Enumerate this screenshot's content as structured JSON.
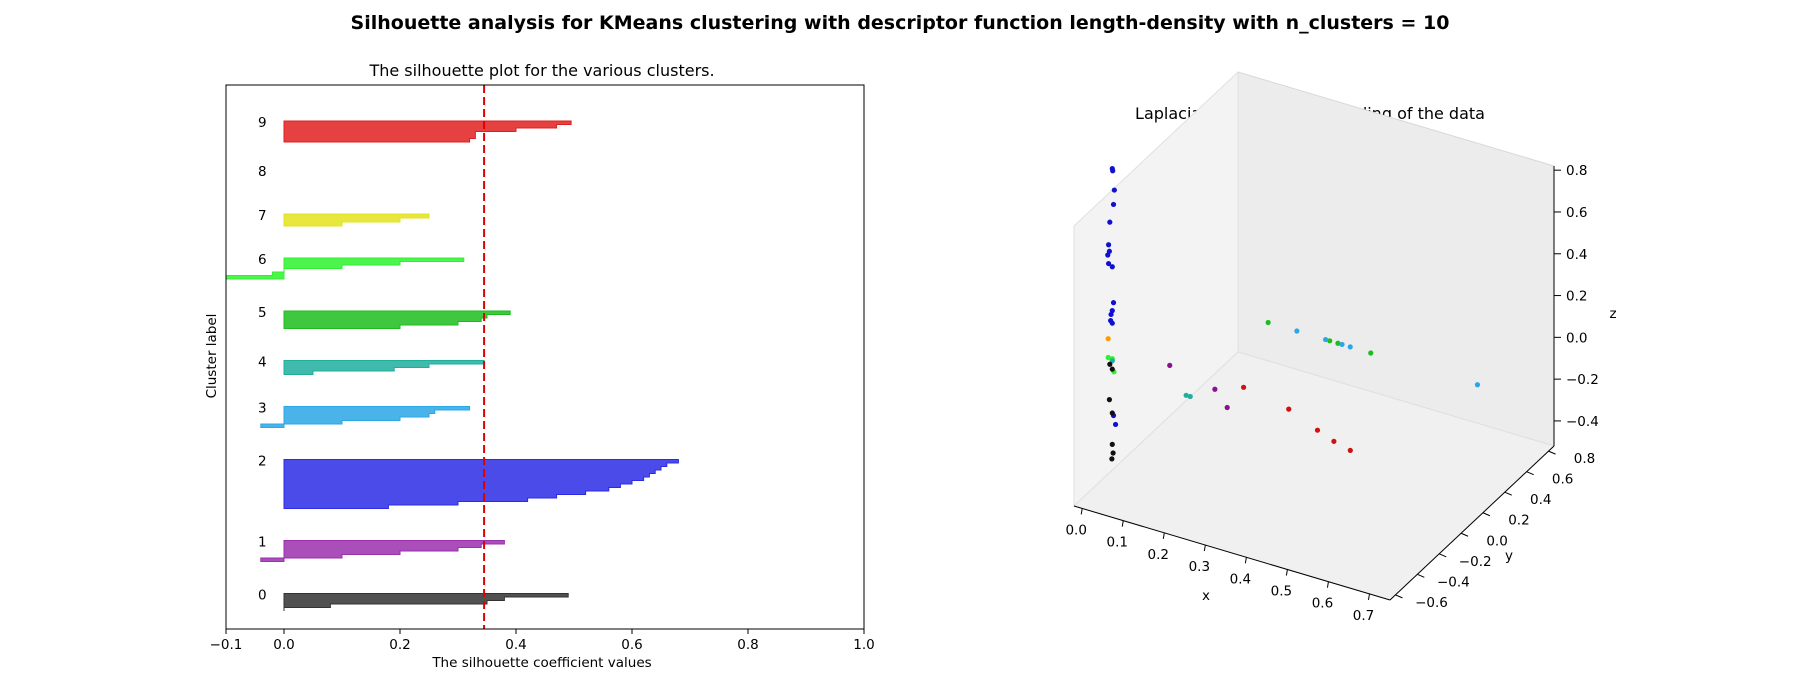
{
  "figure": {
    "suptitle": "Silhouette analysis for KMeans clustering with descriptor function length-density with n_clusters = 10"
  },
  "chart_data": [
    {
      "type": "area",
      "title": "The silhouette plot for the various clusters.",
      "xlabel": "The silhouette coefficient values",
      "ylabel": "Cluster label",
      "xlim": [
        -0.1,
        1.0
      ],
      "x_ticks": [
        "−0.1",
        "0.0",
        "0.2",
        "0.4",
        "0.6",
        "0.8",
        "1.0"
      ],
      "x_tick_values": [
        -0.1,
        0.0,
        0.2,
        0.4,
        0.6,
        0.8,
        1.0
      ],
      "y_ticks": "none",
      "grid": false,
      "average_silhouette": 0.345,
      "average_line_color": "#e00000",
      "clusters": [
        {
          "label": "0",
          "color": "#333333",
          "values": [
            0.49,
            0.38,
            0.35,
            0.08,
            0.0
          ]
        },
        {
          "label": "1",
          "color": "#9b2fae",
          "values": [
            0.38,
            0.34,
            0.3,
            0.2,
            0.1,
            -0.04
          ]
        },
        {
          "label": "2",
          "color": "#2b2be6",
          "values": [
            0.68,
            0.66,
            0.65,
            0.64,
            0.63,
            0.62,
            0.6,
            0.58,
            0.56,
            0.52,
            0.47,
            0.42,
            0.3,
            0.18
          ]
        },
        {
          "label": "3",
          "color": "#2aa7e6",
          "values": [
            0.32,
            0.26,
            0.25,
            0.2,
            0.1,
            -0.04
          ]
        },
        {
          "label": "4",
          "color": "#1fae9c",
          "values": [
            0.345,
            0.25,
            0.19,
            0.05
          ]
        },
        {
          "label": "5",
          "color": "#1ebd1e",
          "values": [
            0.39,
            0.35,
            0.34,
            0.3,
            0.2
          ]
        },
        {
          "label": "6",
          "color": "#2ef22e",
          "values": [
            0.31,
            0.2,
            0.1,
            0.0,
            -0.02,
            -0.1
          ]
        },
        {
          "label": "7",
          "color": "#e3e31c",
          "values": [
            0.25,
            0.2,
            0.1
          ]
        },
        {
          "label": "8",
          "color": "#ff9a00",
          "values": []
        },
        {
          "label": "9",
          "color": "#e02020",
          "values": [
            0.495,
            0.47,
            0.4,
            0.33,
            0.33,
            0.32
          ]
        }
      ]
    },
    {
      "type": "scatter",
      "title": "Laplacian eigenmap embedding of the data",
      "xlabel": "x",
      "ylabel": "y",
      "zlabel": "z",
      "xlim": [
        -0.02,
        0.75
      ],
      "ylim": [
        -0.65,
        0.85
      ],
      "zlim": [
        -0.52,
        0.82
      ],
      "x_ticks": [
        "0.0",
        "0.1",
        "0.2",
        "0.3",
        "0.4",
        "0.5",
        "0.6",
        "0.7"
      ],
      "x_tick_values": [
        0.0,
        0.1,
        0.2,
        0.3,
        0.4,
        0.5,
        0.6,
        0.7
      ],
      "y_ticks": [
        "−0.6",
        "−0.4",
        "−0.2",
        "0.0",
        "0.2",
        "0.4",
        "0.6",
        "0.8"
      ],
      "y_tick_values": [
        -0.6,
        -0.4,
        -0.2,
        0.0,
        0.2,
        0.4,
        0.6,
        0.8
      ],
      "z_ticks": [
        "−0.4",
        "−0.2",
        "0.0",
        "0.2",
        "0.4",
        "0.6",
        "0.8"
      ],
      "z_tick_values": [
        -0.4,
        -0.2,
        0.0,
        0.2,
        0.4,
        0.6,
        0.8
      ],
      "grid": false,
      "points": [
        {
          "x": 0.02,
          "y": -0.45,
          "z": 1.02,
          "color": "#1010d0"
        },
        {
          "x": 0.021,
          "y": -0.45,
          "z": 1.01,
          "color": "#1010d0"
        },
        {
          "x": 0.025,
          "y": -0.45,
          "z": 0.92,
          "color": "#1010d0"
        },
        {
          "x": 0.023,
          "y": -0.45,
          "z": 0.85,
          "color": "#1010d0"
        },
        {
          "x": 0.014,
          "y": -0.45,
          "z": 0.76,
          "color": "#1010d0"
        },
        {
          "x": 0.011,
          "y": -0.45,
          "z": 0.65,
          "color": "#1010d0"
        },
        {
          "x": 0.013,
          "y": -0.45,
          "z": 0.62,
          "color": "#1010d0"
        },
        {
          "x": 0.009,
          "y": -0.45,
          "z": 0.6,
          "color": "#1010d0"
        },
        {
          "x": 0.011,
          "y": -0.45,
          "z": 0.56,
          "color": "#1010d0"
        },
        {
          "x": 0.02,
          "y": -0.45,
          "z": 0.55,
          "color": "#1010d0"
        },
        {
          "x": 0.023,
          "y": -0.45,
          "z": 0.38,
          "color": "#1010d0"
        },
        {
          "x": 0.02,
          "y": -0.45,
          "z": 0.34,
          "color": "#1010d0"
        },
        {
          "x": 0.017,
          "y": -0.45,
          "z": 0.32,
          "color": "#1010d0"
        },
        {
          "x": 0.016,
          "y": -0.45,
          "z": 0.29,
          "color": "#1010d0"
        },
        {
          "x": 0.02,
          "y": -0.45,
          "z": 0.28,
          "color": "#1010d0"
        },
        {
          "x": 0.023,
          "y": -0.45,
          "z": -0.16,
          "color": "#1010d0"
        },
        {
          "x": 0.028,
          "y": -0.45,
          "z": -0.2,
          "color": "#1010d0"
        },
        {
          "x": 0.01,
          "y": -0.45,
          "z": 0.2,
          "color": "#ff9a00"
        },
        {
          "x": 0.01,
          "y": -0.45,
          "z": 0.11,
          "color": "#2ef22e"
        },
        {
          "x": 0.02,
          "y": -0.45,
          "z": 0.11,
          "color": "#2ef22e"
        },
        {
          "x": 0.024,
          "y": -0.45,
          "z": 0.05,
          "color": "#2ef22e"
        },
        {
          "x": 0.02,
          "y": -0.45,
          "z": 0.1,
          "color": "#1fae9c"
        },
        {
          "x": 0.014,
          "y": -0.45,
          "z": 0.08,
          "color": "#111111"
        },
        {
          "x": 0.02,
          "y": -0.45,
          "z": 0.06,
          "color": "#111111"
        },
        {
          "x": 0.013,
          "y": -0.45,
          "z": -0.09,
          "color": "#111111"
        },
        {
          "x": 0.02,
          "y": -0.45,
          "z": -0.15,
          "color": "#111111"
        },
        {
          "x": 0.02,
          "y": -0.45,
          "z": -0.3,
          "color": "#111111"
        },
        {
          "x": 0.022,
          "y": -0.45,
          "z": -0.34,
          "color": "#111111"
        },
        {
          "x": 0.019,
          "y": -0.45,
          "z": -0.37,
          "color": "#111111"
        },
        {
          "x": 0.16,
          "y": -0.45,
          "z": 0.16,
          "color": "#8a1090"
        },
        {
          "x": 0.27,
          "y": -0.45,
          "z": 0.11,
          "color": "#8a1090"
        },
        {
          "x": 0.3,
          "y": -0.45,
          "z": 0.04,
          "color": "#8a1090"
        },
        {
          "x": 0.2,
          "y": -0.45,
          "z": 0.04,
          "color": "#1fae9c"
        },
        {
          "x": 0.21,
          "y": -0.45,
          "z": 0.04,
          "color": "#1fae9c"
        },
        {
          "x": 0.34,
          "y": -0.45,
          "z": 0.16,
          "color": "#d01010"
        },
        {
          "x": 0.45,
          "y": -0.45,
          "z": 0.12,
          "color": "#d01010"
        },
        {
          "x": 0.52,
          "y": -0.45,
          "z": 0.06,
          "color": "#d01010"
        },
        {
          "x": 0.56,
          "y": -0.45,
          "z": 0.03,
          "color": "#d01010"
        },
        {
          "x": 0.6,
          "y": -0.45,
          "z": 0.01,
          "color": "#d01010"
        },
        {
          "x": 0.2,
          "y": 0.3,
          "z": 0.02,
          "color": "#1ebd1e"
        },
        {
          "x": 0.35,
          "y": 0.3,
          "z": 0.02,
          "color": "#1ebd1e"
        },
        {
          "x": 0.37,
          "y": 0.3,
          "z": 0.02,
          "color": "#1ebd1e"
        },
        {
          "x": 0.45,
          "y": 0.3,
          "z": 0.02,
          "color": "#1ebd1e"
        },
        {
          "x": 0.27,
          "y": 0.3,
          "z": 0.02,
          "color": "#2aa7e6"
        },
        {
          "x": 0.34,
          "y": 0.3,
          "z": 0.02,
          "color": "#2aa7e6"
        },
        {
          "x": 0.38,
          "y": 0.3,
          "z": 0.02,
          "color": "#2aa7e6"
        },
        {
          "x": 0.4,
          "y": 0.3,
          "z": 0.02,
          "color": "#2aa7e6"
        },
        {
          "x": 0.71,
          "y": 0.3,
          "z": 0.02,
          "color": "#2aa7e6"
        }
      ]
    }
  ]
}
